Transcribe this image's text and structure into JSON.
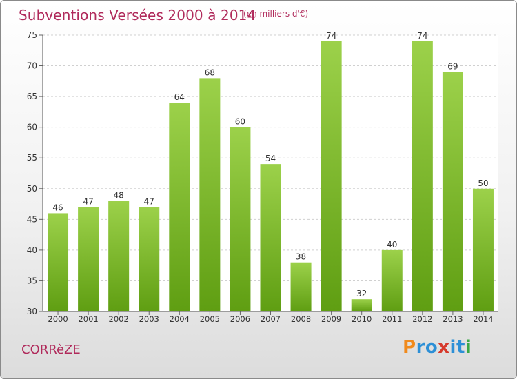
{
  "page": {
    "title": "Subventions Versées 2000 à 2014",
    "unit_note": "(en milliers d'€)",
    "region": "CORRèZE",
    "logo": {
      "letters": [
        "P",
        "r",
        "o",
        "x",
        "i",
        "t",
        "i"
      ],
      "colors": [
        "#f08a1c",
        "#2c8fd6",
        "#2c8fd6",
        "#d63a2c",
        "#2c8fd6",
        "#2c8fd6",
        "#3aa844"
      ]
    }
  },
  "chart_data": {
    "type": "bar",
    "categories": [
      "2000",
      "2001",
      "2002",
      "2003",
      "2004",
      "2005",
      "2006",
      "2007",
      "2008",
      "2009",
      "2010",
      "2011",
      "2012",
      "2013",
      "2014"
    ],
    "values": [
      46,
      47,
      48,
      47,
      64,
      68,
      60,
      54,
      38,
      74,
      32,
      40,
      74,
      69,
      50
    ],
    "yticks": [
      30,
      35,
      40,
      45,
      50,
      55,
      60,
      65,
      70,
      75
    ],
    "ylim": [
      30,
      75
    ],
    "grid": true,
    "bar_color_top": "#9cd14a",
    "bar_color_bottom": "#5f9e12"
  }
}
